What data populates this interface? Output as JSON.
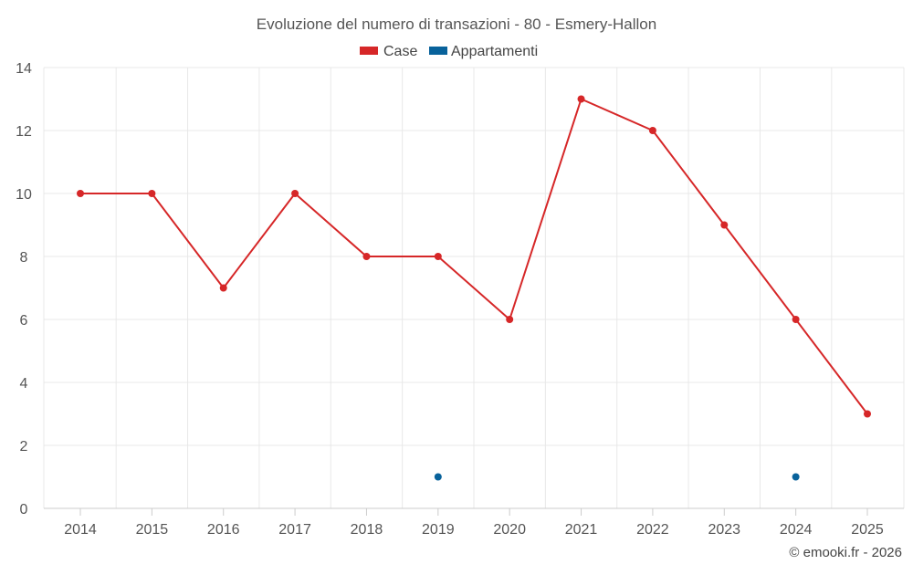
{
  "chart_data": {
    "type": "line",
    "title": "Evoluzione del numero di transazioni - 80 - Esmery-Hallon",
    "categories": [
      "2014",
      "2015",
      "2016",
      "2017",
      "2018",
      "2019",
      "2020",
      "2021",
      "2022",
      "2023",
      "2024",
      "2025"
    ],
    "ylim": [
      0,
      14
    ],
    "yticks": [
      0,
      2,
      4,
      6,
      8,
      10,
      12,
      14
    ],
    "grid": true,
    "legend_position": "top-center",
    "series": [
      {
        "name": "Case",
        "color": "#d62728",
        "values": [
          10,
          10,
          7,
          10,
          8,
          8,
          6,
          13,
          12,
          9,
          6,
          3
        ]
      },
      {
        "name": "Appartamenti",
        "color": "#08629b",
        "values": [
          null,
          null,
          null,
          null,
          null,
          1,
          null,
          null,
          null,
          null,
          1,
          null
        ]
      }
    ]
  },
  "credit": "© emooki.fr - 2026"
}
